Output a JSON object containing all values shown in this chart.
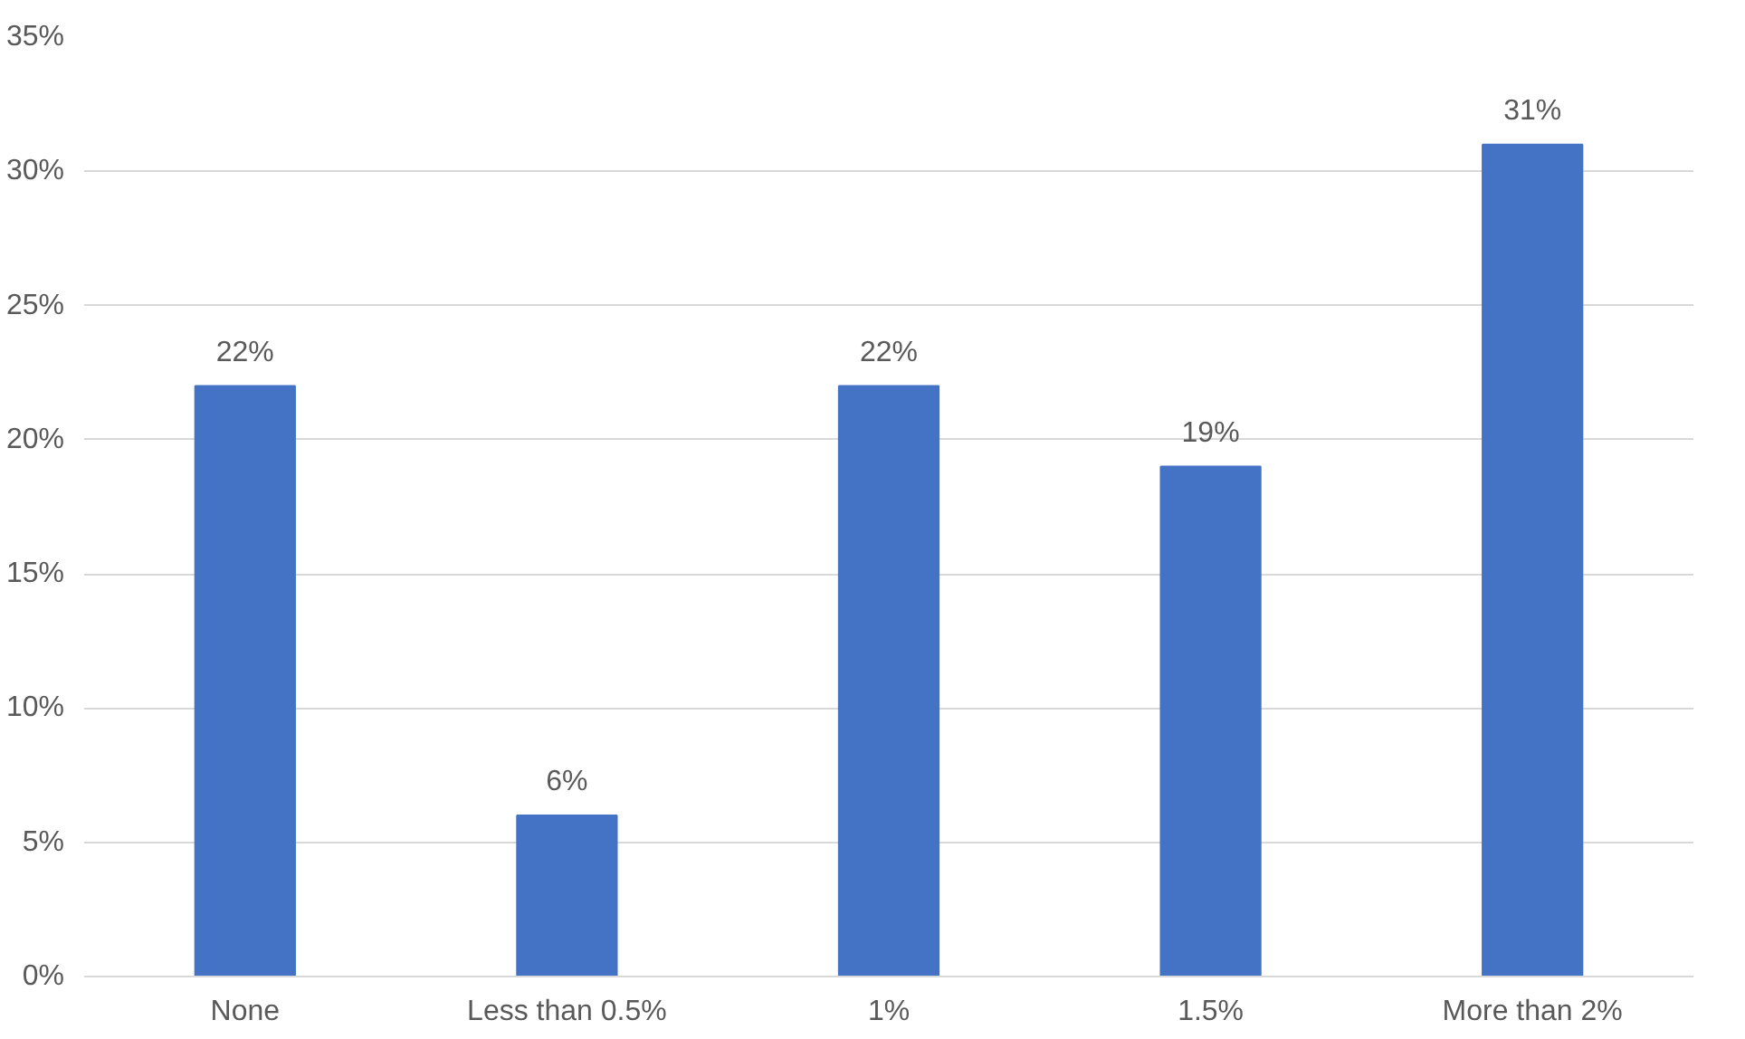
{
  "chart_data": {
    "type": "bar",
    "categories": [
      "None",
      "Less than 0.5%",
      "1%",
      "1.5%",
      "More than 2%"
    ],
    "values": [
      22,
      6,
      22,
      19,
      31
    ],
    "value_labels": [
      "22%",
      "6%",
      "22%",
      "19%",
      "31%"
    ],
    "color": "#4472c4",
    "ylim": [
      0,
      35
    ],
    "yticks": [
      {
        "value": 0,
        "label": "0%"
      },
      {
        "value": 5,
        "label": "5%"
      },
      {
        "value": 10,
        "label": "10%"
      },
      {
        "value": 15,
        "label": "15%"
      },
      {
        "value": 20,
        "label": "20%"
      },
      {
        "value": 25,
        "label": "25%"
      },
      {
        "value": 30,
        "label": "30%"
      },
      {
        "value": 35,
        "label": "35%"
      }
    ],
    "grid": "y"
  }
}
